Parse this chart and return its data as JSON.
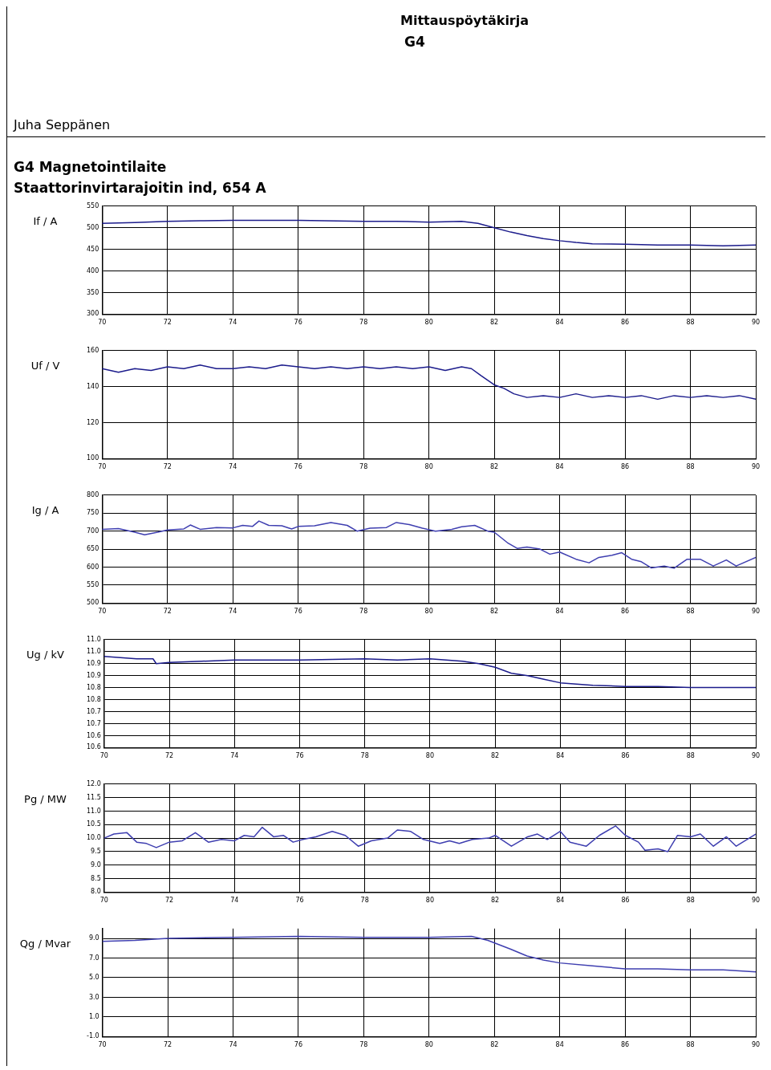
{
  "chart_data": [
    {
      "type": "line",
      "title": "G4 Magnetointilaite",
      "subtitle": "Staattorinvirtarajoitin ind, 654 A",
      "annotations": [
        "Mittauspöytäkirja",
        "G4",
        "Juha Seppänen"
      ],
      "ylabel": "If / A",
      "grid": true,
      "line_style": "solid",
      "marker": "none",
      "xlim": [
        70,
        90
      ],
      "xticks": [
        70,
        72,
        74,
        76,
        78,
        80,
        82,
        84,
        86,
        88,
        90
      ],
      "ylim": [
        300,
        550
      ],
      "yticks": [
        300,
        350,
        400,
        450,
        500,
        550
      ],
      "series": [
        {
          "color": "#1c1c8c",
          "x": [
            70,
            71,
            72,
            73,
            74,
            76,
            78,
            79,
            80,
            81,
            81.5,
            82,
            82.5,
            83,
            83.5,
            84,
            84.5,
            85,
            86,
            87,
            88,
            89,
            90
          ],
          "values": [
            510,
            512,
            515,
            516,
            517,
            517,
            515,
            515,
            513,
            515,
            510,
            500,
            490,
            482,
            475,
            470,
            466,
            463,
            462,
            460,
            460,
            458,
            460
          ]
        }
      ]
    },
    {
      "type": "line",
      "ylabel": "Uf / V",
      "grid": true,
      "line_style": "solid",
      "marker": "none",
      "xlim": [
        70,
        90
      ],
      "xticks": [
        70,
        72,
        74,
        76,
        78,
        80,
        82,
        84,
        86,
        88,
        90
      ],
      "ylim": [
        100,
        160
      ],
      "yticks": [
        100,
        120,
        140,
        160
      ],
      "series": [
        {
          "color": "#1c1c8c",
          "x": [
            70,
            70.5,
            71,
            71.5,
            72,
            72.5,
            73,
            73.5,
            74,
            74.5,
            75,
            75.5,
            76,
            76.5,
            77,
            77.5,
            78,
            78.5,
            79,
            79.5,
            80,
            80.5,
            81,
            81.3,
            81.6,
            82,
            82.3,
            82.6,
            83,
            83.5,
            84,
            84.5,
            85,
            85.5,
            86,
            86.5,
            87,
            87.5,
            88,
            88.5,
            89,
            89.5,
            90
          ],
          "values": [
            150,
            148,
            150,
            149,
            151,
            150,
            152,
            150,
            150,
            151,
            150,
            152,
            151,
            150,
            151,
            150,
            151,
            150,
            151,
            150,
            151,
            149,
            151,
            150,
            146,
            141,
            139,
            136,
            134,
            135,
            134,
            136,
            134,
            135,
            134,
            135,
            133,
            135,
            134,
            135,
            134,
            135,
            133
          ]
        }
      ]
    },
    {
      "type": "line",
      "ylabel": "Ig / A",
      "grid": true,
      "line_style": "solid",
      "marker": "none",
      "xlim": [
        70,
        90
      ],
      "xticks": [
        70,
        72,
        74,
        76,
        78,
        80,
        82,
        84,
        86,
        88,
        90
      ],
      "ylim": [
        500,
        800
      ],
      "yticks": [
        500,
        550,
        600,
        650,
        700,
        750,
        800
      ],
      "series": [
        {
          "color": "#3f3fb0",
          "x": [
            70,
            70.5,
            71,
            71.3,
            71.7,
            72,
            72.5,
            72.7,
            73,
            73.5,
            74,
            74.3,
            74.6,
            74.8,
            75.1,
            75.5,
            75.8,
            76,
            76.5,
            77,
            77.5,
            77.8,
            78.2,
            78.7,
            79,
            79.4,
            79.8,
            80.2,
            80.7,
            81,
            81.4,
            81.8,
            82,
            82.4,
            82.7,
            83,
            83.4,
            83.7,
            84,
            84.5,
            84.9,
            85.2,
            85.6,
            85.9,
            86.2,
            86.5,
            86.8,
            87.2,
            87.5,
            87.9,
            88.3,
            88.7,
            89.1,
            89.4,
            90
          ],
          "values": [
            705,
            707,
            697,
            690,
            697,
            703,
            706,
            717,
            705,
            710,
            709,
            716,
            713,
            728,
            716,
            715,
            706,
            713,
            715,
            724,
            716,
            700,
            708,
            710,
            724,
            718,
            708,
            700,
            705,
            712,
            716,
            700,
            697,
            668,
            652,
            656,
            650,
            636,
            642,
            622,
            612,
            627,
            633,
            640,
            622,
            615,
            598,
            603,
            597,
            622,
            622,
            603,
            620,
            603,
            627
          ]
        }
      ]
    },
    {
      "type": "line",
      "ylabel": "Ug / kV",
      "grid": true,
      "line_style": "solid",
      "marker": "none",
      "xlim": [
        70,
        90
      ],
      "xticks": [
        70,
        72,
        74,
        76,
        78,
        80,
        82,
        84,
        86,
        88,
        90
      ],
      "ylim": [
        10.55,
        11.0
      ],
      "yticks": [
        {
          "value": 10.55,
          "label": "10.6"
        },
        {
          "value": 10.6,
          "label": "10.6"
        },
        {
          "value": 10.65,
          "label": "10.7"
        },
        {
          "value": 10.7,
          "label": "10.7"
        },
        {
          "value": 10.75,
          "label": "10.8"
        },
        {
          "value": 10.8,
          "label": "10.8"
        },
        {
          "value": 10.85,
          "label": "10.9"
        },
        {
          "value": 10.9,
          "label": "10.9"
        },
        {
          "value": 10.95,
          "label": "11.0"
        },
        {
          "value": 11.0,
          "label": "11.0"
        }
      ],
      "series": [
        {
          "color": "#1c1c8c",
          "x": [
            70,
            71,
            71.5,
            71.6,
            72,
            73,
            74,
            76,
            78,
            79,
            80,
            81,
            81.5,
            82,
            82.5,
            83,
            83.5,
            84,
            85,
            86,
            87,
            88,
            89,
            90
          ],
          "values": [
            10.93,
            10.92,
            10.92,
            10.9,
            10.905,
            10.91,
            10.915,
            10.915,
            10.92,
            10.915,
            10.92,
            10.91,
            10.9,
            10.885,
            10.86,
            10.85,
            10.835,
            10.82,
            10.81,
            10.805,
            10.805,
            10.8,
            10.8,
            10.8
          ]
        }
      ]
    },
    {
      "type": "line",
      "ylabel": "Pg / MW",
      "grid": true,
      "line_style": "solid",
      "marker": "none",
      "xlim": [
        70,
        90
      ],
      "xticks": [
        70,
        72,
        74,
        76,
        78,
        80,
        82,
        84,
        86,
        88,
        90
      ],
      "ylim": [
        8.0,
        12.0
      ],
      "yticks": [
        {
          "value": 8,
          "label": "8.0"
        },
        {
          "value": 8.5,
          "label": "8.5"
        },
        {
          "value": 9,
          "label": "9.0"
        },
        {
          "value": 9.5,
          "label": "9.5"
        },
        {
          "value": 10,
          "label": "10.0"
        },
        {
          "value": 10.5,
          "label": "10.5"
        },
        {
          "value": 11,
          "label": "11.0"
        },
        {
          "value": 11.5,
          "label": "11.5"
        },
        {
          "value": 12,
          "label": "12.0"
        }
      ],
      "series": [
        {
          "color": "#3f3fb0",
          "x": [
            70,
            70.3,
            70.7,
            71,
            71.3,
            71.6,
            72,
            72.4,
            72.8,
            73.2,
            73.6,
            74,
            74.3,
            74.6,
            74.85,
            75.2,
            75.5,
            75.8,
            76.1,
            76.5,
            77,
            77.4,
            77.8,
            78.2,
            78.7,
            79,
            79.4,
            79.8,
            80.3,
            80.6,
            80.9,
            81.3,
            81.8,
            82,
            82.5,
            83,
            83.3,
            83.6,
            84,
            84.3,
            84.8,
            85.2,
            85.7,
            86,
            86.4,
            86.6,
            87,
            87.3,
            87.6,
            88,
            88.3,
            88.7,
            89.1,
            89.4,
            90
          ],
          "values": [
            10.0,
            10.15,
            10.2,
            9.85,
            9.8,
            9.65,
            9.85,
            9.9,
            10.2,
            9.85,
            9.95,
            9.9,
            10.1,
            10.05,
            10.4,
            10.05,
            10.1,
            9.85,
            9.95,
            10.05,
            10.25,
            10.1,
            9.7,
            9.9,
            10.0,
            10.3,
            10.25,
            9.95,
            9.8,
            9.9,
            9.8,
            9.95,
            10.0,
            10.1,
            9.7,
            10.05,
            10.15,
            9.95,
            10.25,
            9.85,
            9.7,
            10.1,
            10.45,
            10.1,
            9.85,
            9.55,
            9.6,
            9.5,
            10.1,
            10.05,
            10.15,
            9.7,
            10.05,
            9.7,
            10.15
          ]
        }
      ]
    },
    {
      "type": "line",
      "ylabel": "Qg / Mvar",
      "grid": true,
      "line_style": "solid",
      "marker": "none",
      "xlim": [
        70,
        90
      ],
      "xticks": [
        70,
        72,
        74,
        76,
        78,
        80,
        82,
        84,
        86,
        88,
        90
      ],
      "ylim": [
        -1.0,
        10.0
      ],
      "yticks": [
        {
          "value": -1,
          "label": "-1.0"
        },
        {
          "value": 1,
          "label": "1.0"
        },
        {
          "value": 3,
          "label": "3.0"
        },
        {
          "value": 5,
          "label": "5.0"
        },
        {
          "value": 7,
          "label": "7.0"
        },
        {
          "value": 9,
          "label": "9.0"
        }
      ],
      "series": [
        {
          "color": "#3f3fb0",
          "x": [
            70,
            71,
            72,
            74,
            76,
            78,
            80,
            81.3,
            81.8,
            82.5,
            83,
            83.5,
            84,
            85,
            86,
            87,
            88,
            89,
            90
          ],
          "values": [
            8.7,
            8.8,
            9.0,
            9.1,
            9.2,
            9.1,
            9.1,
            9.2,
            8.8,
            7.9,
            7.2,
            6.8,
            6.5,
            6.2,
            5.9,
            5.9,
            5.8,
            5.8,
            5.6
          ]
        }
      ]
    }
  ]
}
